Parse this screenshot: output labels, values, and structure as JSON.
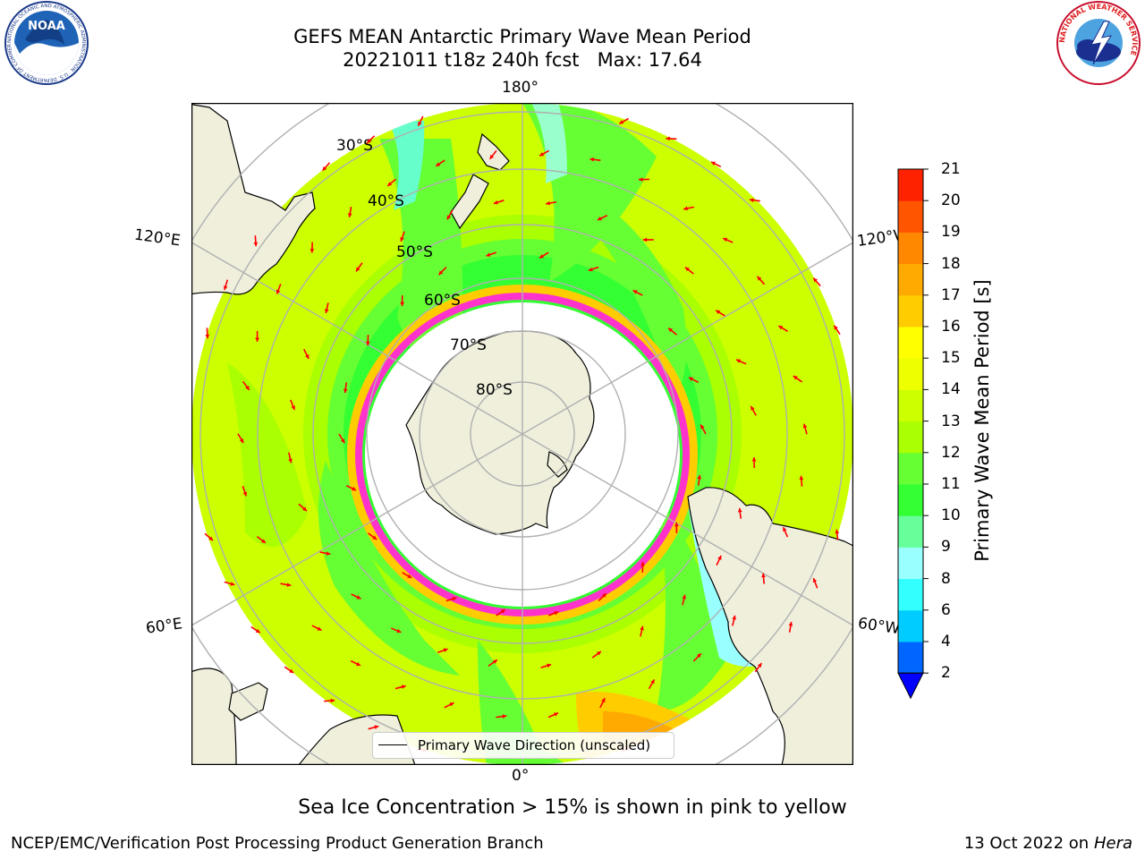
{
  "header": {
    "title_line1": "GEFS MEAN Antarctic Primary Wave Mean Period",
    "title_line2": "20221011 t18z 240h fcst   Max: 17.64"
  },
  "logos": {
    "noaa_text": "NOAA",
    "noaa_ring": "NATIONAL OCEANIC AND ATMOSPHERIC ADMINISTRATION · U.S. DEPARTMENT OF COMMERCE",
    "nws_ring": "NATIONAL WEATHER SERVICE"
  },
  "map": {
    "longitude_labels": {
      "top": "180°",
      "bottom": "0°",
      "upper_left": "120°E",
      "upper_right": "120°W",
      "lower_left": "60°E",
      "lower_right": "60°W"
    },
    "latitude_labels": [
      "30°S",
      "40°S",
      "50°S",
      "60°S",
      "70°S",
      "80°S"
    ],
    "colors": {
      "ocean_base": "#ccff00",
      "land": "#efefdc",
      "ice": "#ffffff",
      "ice_edge": "#ff33cc",
      "arrows": "#ff0000",
      "grid": "#b0b0b0"
    }
  },
  "colorbar": {
    "title": "Primary Wave Mean Period [s]",
    "ticks": [
      "2",
      "4",
      "6",
      "8",
      "9",
      "10",
      "11",
      "12",
      "13",
      "14",
      "15",
      "16",
      "17",
      "18",
      "19",
      "20",
      "21"
    ],
    "colors": [
      "#0066ff",
      "#00ccff",
      "#33ffff",
      "#99ffff",
      "#66ff99",
      "#33ff33",
      "#66ff33",
      "#aaff00",
      "#ccff00",
      "#eeff00",
      "#ffff00",
      "#ffcc00",
      "#ffaa00",
      "#ff8800",
      "#ff5500",
      "#ff2200",
      "#0000ff"
    ]
  },
  "legend": {
    "label": "Primary Wave Direction (unscaled)"
  },
  "footer": {
    "note": "Sea Ice Concentration > 15% is shown in pink to yellow",
    "credit": "NCEP/EMC/Verification Post Processing Product Generation Branch",
    "date": "13 Oct 2022 on ",
    "machine": "Hera"
  }
}
